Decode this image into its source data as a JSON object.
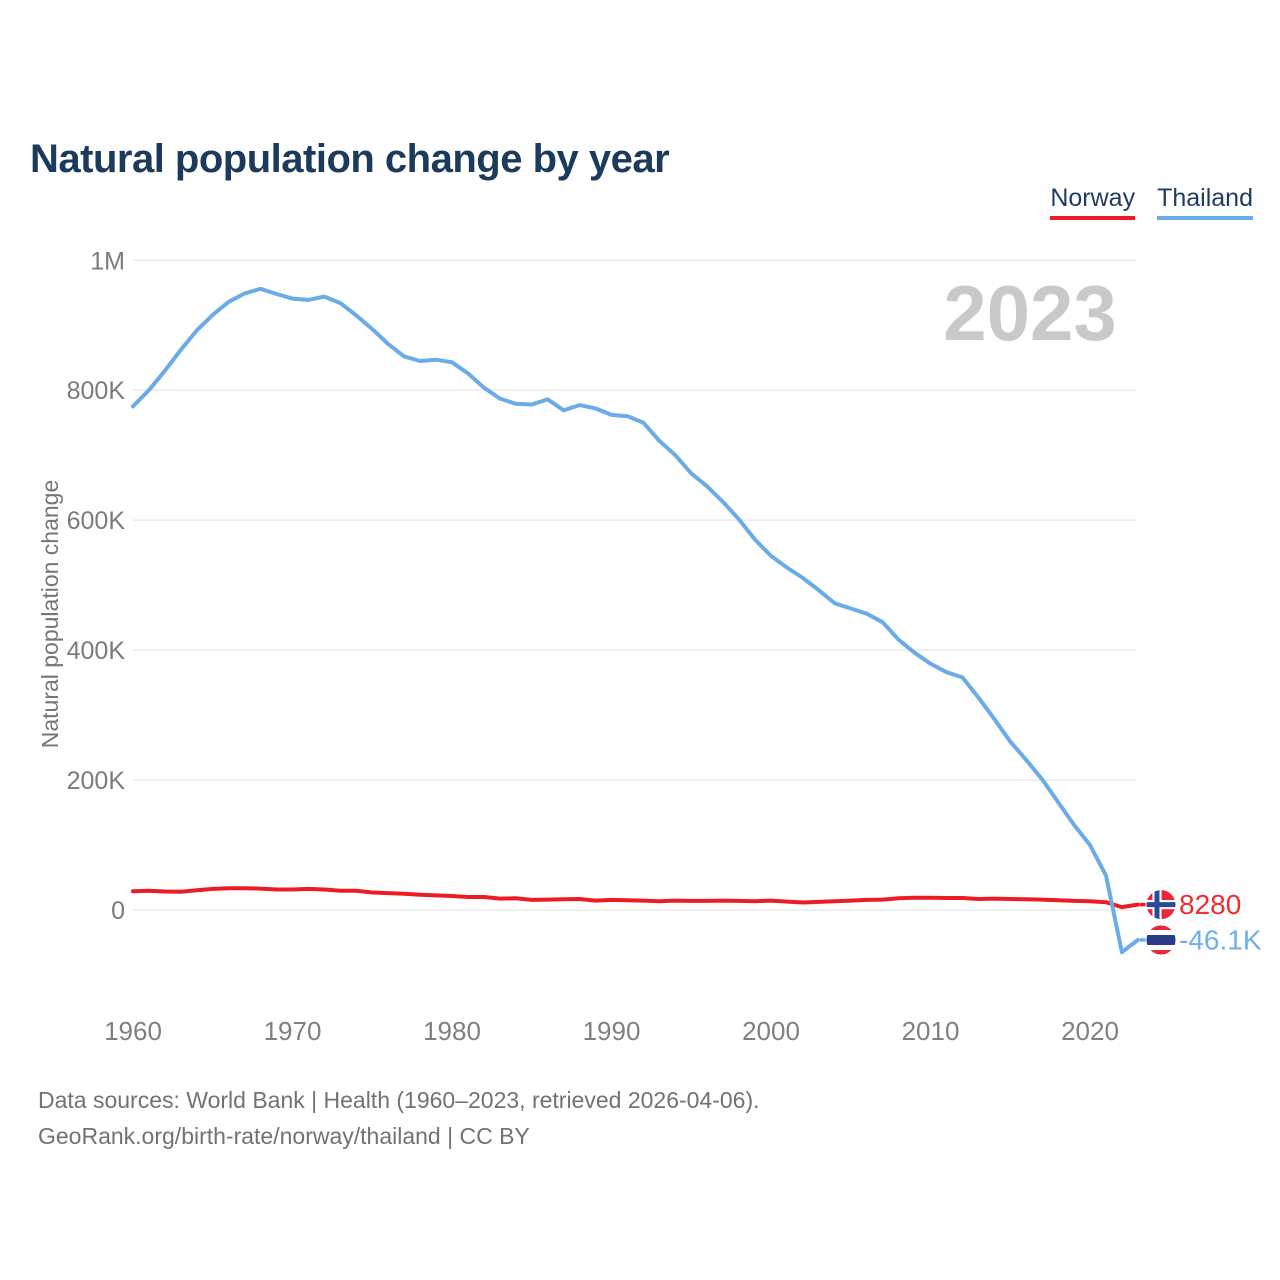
{
  "header": {
    "title": "Natural population change by year"
  },
  "legend": {
    "items": [
      {
        "label": "Norway",
        "color": "#ed1c24"
      },
      {
        "label": "Thailand",
        "color": "#6babe8"
      }
    ]
  },
  "chart_data": {
    "type": "line",
    "title": "Natural population change by year",
    "ylabel": "Natural population change",
    "xlabel": "",
    "watermark": "2023",
    "grid": "horizontal",
    "legend_position": "top-right",
    "xlim": [
      1958.5,
      2025
    ],
    "ylim": [
      -100000,
      1060000
    ],
    "x_ticks": [
      "1960",
      "1970",
      "1980",
      "1990",
      "2000",
      "2010",
      "2020"
    ],
    "y_ticks": [
      {
        "value": 0,
        "label": "0"
      },
      {
        "value": 200000,
        "label": "200K"
      },
      {
        "value": 400000,
        "label": "400K"
      },
      {
        "value": 600000,
        "label": "600K"
      },
      {
        "value": 800000,
        "label": "800K"
      },
      {
        "value": 1000000,
        "label": "1M"
      }
    ],
    "x": [
      1960,
      1961,
      1962,
      1963,
      1964,
      1965,
      1966,
      1967,
      1968,
      1969,
      1970,
      1971,
      1972,
      1973,
      1974,
      1975,
      1976,
      1977,
      1978,
      1979,
      1980,
      1981,
      1982,
      1983,
      1984,
      1985,
      1986,
      1987,
      1988,
      1989,
      1990,
      1991,
      1992,
      1993,
      1994,
      1995,
      1996,
      1997,
      1998,
      1999,
      2000,
      2001,
      2002,
      2003,
      2004,
      2005,
      2006,
      2007,
      2008,
      2009,
      2010,
      2011,
      2012,
      2013,
      2014,
      2015,
      2016,
      2017,
      2018,
      2019,
      2020,
      2021,
      2022,
      2023
    ],
    "series": [
      {
        "name": "Norway",
        "color": "#ed1c24",
        "values": [
          29000,
          29500,
          28500,
          28000,
          30500,
          32500,
          33500,
          33500,
          33000,
          31500,
          31500,
          32500,
          31500,
          29500,
          29500,
          27000,
          26000,
          25000,
          23500,
          22500,
          21500,
          20000,
          20000,
          17500,
          18000,
          15500,
          16000,
          16500,
          17000,
          14500,
          15500,
          15000,
          14500,
          13500,
          14500,
          14000,
          14000,
          14500,
          14000,
          13500,
          14500,
          13000,
          11500,
          12500,
          13500,
          14500,
          15500,
          16000,
          18000,
          19000,
          19000,
          18500,
          18500,
          17000,
          17500,
          17000,
          16500,
          16000,
          15000,
          14000,
          13500,
          12000,
          4500,
          8280
        ]
      },
      {
        "name": "Thailand",
        "color": "#6babe8",
        "values": [
          775000,
          800000,
          830000,
          862000,
          892000,
          916000,
          936000,
          949000,
          956000,
          948000,
          941000,
          939000,
          944000,
          934000,
          915000,
          894000,
          871000,
          852000,
          845000,
          847000,
          843000,
          826000,
          804000,
          787000,
          779000,
          778000,
          786000,
          769000,
          777000,
          772000,
          762000,
          760000,
          750000,
          722000,
          700000,
          672000,
          652000,
          628000,
          601000,
          570000,
          545000,
          527000,
          511000,
          492000,
          472000,
          464000,
          456000,
          443000,
          416000,
          396000,
          379000,
          366000,
          358000,
          327000,
          294000,
          259000,
          231000,
          201000,
          166000,
          131000,
          100000,
          53000,
          -65000,
          -46100
        ]
      }
    ],
    "end_labels": [
      {
        "series": "Norway",
        "label": "8280",
        "color": "#ee2e31",
        "flag": "norway-flag-icon"
      },
      {
        "series": "Thailand",
        "label": "-46.1K",
        "color": "#6db0ea",
        "flag": "thailand-flag-icon"
      }
    ]
  },
  "footer": {
    "line1": "Data sources: World Bank | Health (1960–2023, retrieved 2026-04-06).",
    "line2": "GeoRank.org/birth-rate/norway/thailand | CC BY"
  }
}
